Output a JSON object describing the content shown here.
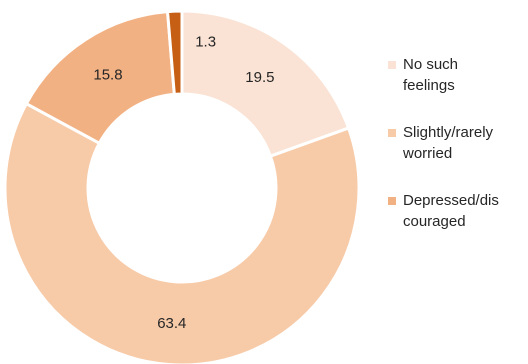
{
  "chart_data": {
    "type": "pie",
    "donut": true,
    "legend_position": "right",
    "slices": [
      {
        "label": "No such feelings",
        "value": 19.5,
        "value_label": "19.5",
        "color": "#fae3d4",
        "legend": true
      },
      {
        "label": "Slightly/rarely worried",
        "value": 63.4,
        "value_label": "63.4",
        "color": "#f7caa8",
        "legend": true
      },
      {
        "label": "Depressed/discouraged",
        "value": 15.8,
        "value_label": "15.8",
        "color": "#f2b183",
        "legend": true
      },
      {
        "label": "",
        "value": 1.3,
        "value_label": "1.3",
        "color": "#c65f14",
        "legend": false
      }
    ],
    "legend": [
      {
        "line1": "No such",
        "line2": "feelings",
        "color": "#fae3d4"
      },
      {
        "line1": "Slightly/rarely",
        "line2": "worried",
        "color": "#f7caa8"
      },
      {
        "line1": "Depressed/dis",
        "line2": "couraged",
        "color": "#f2b183"
      }
    ]
  }
}
